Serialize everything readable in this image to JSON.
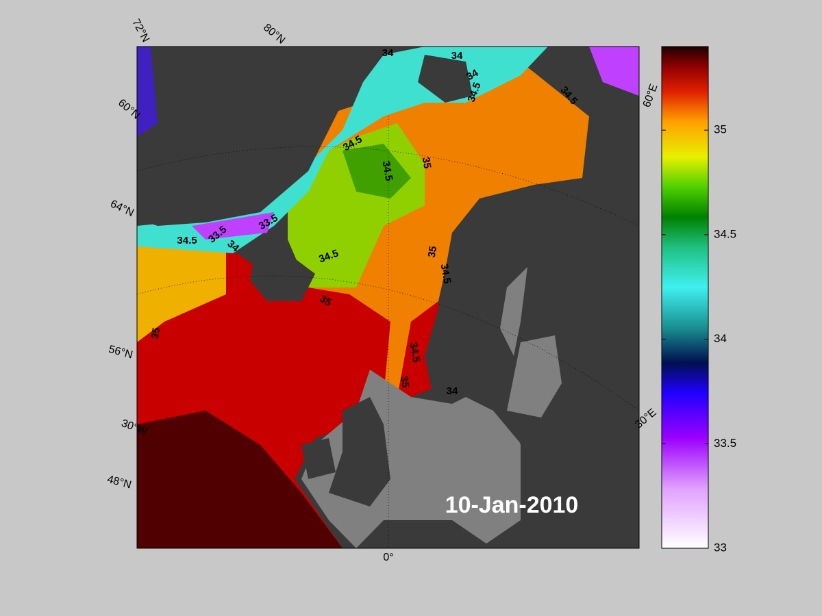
{
  "map": {
    "date": "10-Jan-2010",
    "grid_labels": [
      "72°N",
      "80°N",
      "60°N",
      "64°N",
      "56°N",
      "30°W",
      "48°N",
      "0°",
      "60°E",
      "30°E"
    ],
    "contour_labels": [
      "34",
      "34",
      "34",
      "34.5",
      "34.5",
      "34.5",
      "34.5",
      "35",
      "33.5",
      "33.5",
      "34.5",
      "34",
      "34.5",
      "35",
      "34.5",
      "35",
      "35",
      "34.5",
      "35",
      "34"
    ]
  },
  "colorbar": {
    "lim": [
      33,
      35.4
    ],
    "ticks": [
      33,
      33.5,
      34,
      34.5,
      35
    ]
  }
}
